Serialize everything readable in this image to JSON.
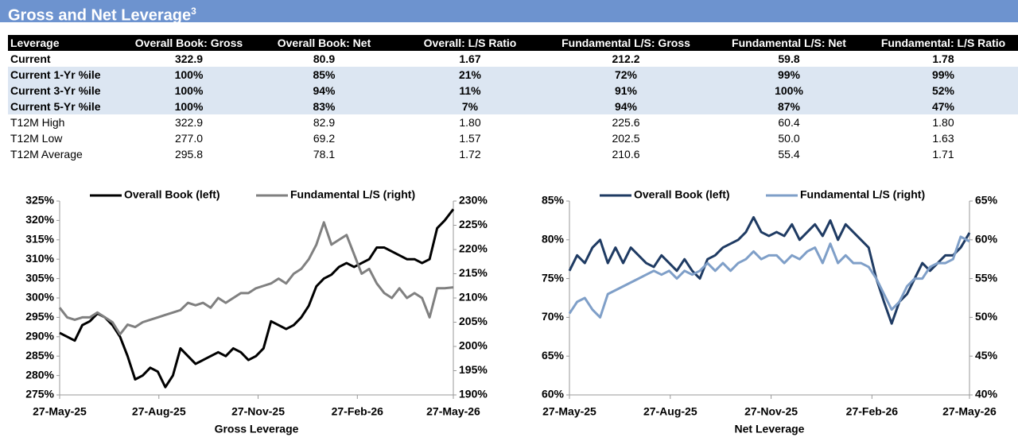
{
  "header": {
    "title": "Gross and Net Leverage",
    "superscript": "3"
  },
  "table": {
    "columns": [
      "Leverage",
      "Overall Book: Gross",
      "Overall Book: Net",
      "Overall: L/S Ratio",
      "Fundamental L/S: Gross",
      "Fundamental L/S: Net",
      "Fundamental: L/S Ratio"
    ],
    "rows": [
      [
        "Current",
        "322.9",
        "80.9",
        "1.67",
        "212.2",
        "59.8",
        "1.78"
      ],
      [
        "Current 1-Yr %ile",
        "100%",
        "85%",
        "21%",
        "72%",
        "99%",
        "99%"
      ],
      [
        "Current 3-Yr %ile",
        "100%",
        "94%",
        "11%",
        "91%",
        "100%",
        "52%"
      ],
      [
        "Current 5-Yr %ile",
        "100%",
        "83%",
        "7%",
        "94%",
        "87%",
        "47%"
      ],
      [
        "T12M High",
        "322.9",
        "82.9",
        "1.80",
        "225.6",
        "60.4",
        "1.80"
      ],
      [
        "T12M Low",
        "277.0",
        "69.2",
        "1.57",
        "202.5",
        "50.0",
        "1.63"
      ],
      [
        "T12M Average",
        "295.8",
        "78.1",
        "1.72",
        "210.6",
        "55.4",
        "1.71"
      ]
    ]
  },
  "chart_data": [
    {
      "type": "line",
      "xlabel": "Gross Leverage",
      "legend": "top",
      "x": [
        "27-May-25",
        "3-Jun-25",
        "10-Jun-25",
        "17-Jun-25",
        "24-Jun-25",
        "1-Jul-25",
        "8-Jul-25",
        "15-Jul-25",
        "22-Jul-25",
        "29-Jul-25",
        "5-Aug-25",
        "12-Aug-25",
        "19-Aug-25",
        "26-Aug-25",
        "2-Sep-25",
        "9-Sep-25",
        "16-Sep-25",
        "23-Sep-25",
        "30-Sep-25",
        "7-Oct-25",
        "14-Oct-25",
        "21-Oct-25",
        "28-Oct-25",
        "4-Nov-25",
        "11-Nov-25",
        "18-Nov-25",
        "25-Nov-25",
        "2-Dec-25",
        "9-Dec-25",
        "16-Dec-25",
        "23-Dec-25",
        "30-Dec-25",
        "6-Jan-26",
        "13-Jan-26",
        "20-Jan-26",
        "27-Jan-26",
        "3-Feb-26",
        "10-Feb-26",
        "17-Feb-26",
        "24-Feb-26",
        "3-Mar-26",
        "10-Mar-26",
        "17-Mar-26",
        "24-Mar-26",
        "31-Mar-26",
        "7-Apr-26",
        "14-Apr-26",
        "21-Apr-26",
        "28-Apr-26",
        "5-May-26",
        "12-May-26",
        "19-May-26",
        "27-May-26"
      ],
      "xlim": [
        "27-May-25",
        "27-May-26"
      ],
      "xticks": [
        "27-May-25",
        "27-Aug-25",
        "27-Nov-25",
        "27-Feb-26",
        "27-May-26"
      ],
      "ylim": [
        275,
        325
      ],
      "yticks": [
        {
          "value": 275,
          "label": "275%"
        },
        {
          "value": 280,
          "label": "280%"
        },
        {
          "value": 285,
          "label": "285%"
        },
        {
          "value": 290,
          "label": "290%"
        },
        {
          "value": 295,
          "label": "295%"
        },
        {
          "value": 300,
          "label": "300%"
        },
        {
          "value": 305,
          "label": "305%"
        },
        {
          "value": 310,
          "label": "310%"
        },
        {
          "value": 315,
          "label": "315%"
        },
        {
          "value": 320,
          "label": "320%"
        },
        {
          "value": 325,
          "label": "325%"
        }
      ],
      "y2lim": [
        190,
        230
      ],
      "y2ticks": [
        {
          "value": 190,
          "label": "190%"
        },
        {
          "value": 195,
          "label": "195%"
        },
        {
          "value": 200,
          "label": "200%"
        },
        {
          "value": 205,
          "label": "205%"
        },
        {
          "value": 210,
          "label": "210%"
        },
        {
          "value": 215,
          "label": "215%"
        },
        {
          "value": 220,
          "label": "220%"
        },
        {
          "value": 225,
          "label": "225%"
        },
        {
          "value": 230,
          "label": "230%"
        }
      ],
      "series": [
        {
          "name": "Overall Book (left)",
          "color": "#000000",
          "axis": "y",
          "values": [
            291,
            290,
            289,
            293,
            294,
            296,
            295,
            293,
            290,
            285,
            279,
            280,
            282,
            281,
            277,
            280,
            287,
            285,
            283,
            284,
            285,
            286,
            285,
            287,
            286,
            284,
            285,
            287,
            294,
            293,
            292,
            293,
            295,
            298,
            303,
            305,
            306,
            308,
            309,
            308,
            309,
            310,
            313,
            313,
            312,
            311,
            310,
            310,
            309,
            310,
            318,
            320,
            322.9
          ]
        },
        {
          "name": "Fundamental L/S (right)",
          "color": "#808080",
          "axis": "y2",
          "values": [
            208,
            206,
            205.5,
            206,
            206,
            207,
            206,
            205,
            202.5,
            204.5,
            204,
            205,
            205.5,
            206,
            206.5,
            207,
            207.5,
            209,
            208.5,
            209,
            208,
            210,
            209,
            210,
            211,
            211,
            212,
            212.5,
            213,
            214,
            213,
            215,
            216,
            218,
            221,
            225.6,
            221,
            222,
            223,
            219,
            215,
            216,
            213,
            211,
            210,
            212,
            210,
            211,
            210,
            206,
            212,
            212,
            212.2
          ]
        }
      ]
    },
    {
      "type": "line",
      "xlabel": "Net Leverage",
      "legend": "top",
      "x": [
        "27-May-25",
        "3-Jun-25",
        "10-Jun-25",
        "17-Jun-25",
        "24-Jun-25",
        "1-Jul-25",
        "8-Jul-25",
        "15-Jul-25",
        "22-Jul-25",
        "29-Jul-25",
        "5-Aug-25",
        "12-Aug-25",
        "19-Aug-25",
        "26-Aug-25",
        "2-Sep-25",
        "9-Sep-25",
        "16-Sep-25",
        "23-Sep-25",
        "30-Sep-25",
        "7-Oct-25",
        "14-Oct-25",
        "21-Oct-25",
        "28-Oct-25",
        "4-Nov-25",
        "11-Nov-25",
        "18-Nov-25",
        "25-Nov-25",
        "2-Dec-25",
        "9-Dec-25",
        "16-Dec-25",
        "23-Dec-25",
        "30-Dec-25",
        "6-Jan-26",
        "13-Jan-26",
        "20-Jan-26",
        "27-Jan-26",
        "3-Feb-26",
        "10-Feb-26",
        "17-Feb-26",
        "24-Feb-26",
        "3-Mar-26",
        "10-Mar-26",
        "17-Mar-26",
        "24-Mar-26",
        "31-Mar-26",
        "7-Apr-26",
        "14-Apr-26",
        "21-Apr-26",
        "28-Apr-26",
        "5-May-26",
        "12-May-26",
        "19-May-26",
        "27-May-26"
      ],
      "xlim": [
        "27-May-25",
        "27-May-26"
      ],
      "xticks": [
        "27-May-25",
        "27-Aug-25",
        "27-Nov-25",
        "27-Feb-26",
        "27-May-26"
      ],
      "ylim": [
        60,
        85
      ],
      "yticks": [
        {
          "value": 60,
          "label": "60%"
        },
        {
          "value": 65,
          "label": "65%"
        },
        {
          "value": 70,
          "label": "70%"
        },
        {
          "value": 75,
          "label": "75%"
        },
        {
          "value": 80,
          "label": "80%"
        },
        {
          "value": 85,
          "label": "85%"
        }
      ],
      "y2lim": [
        40,
        65
      ],
      "y2ticks": [
        {
          "value": 40,
          "label": "40%"
        },
        {
          "value": 45,
          "label": "45%"
        },
        {
          "value": 50,
          "label": "50%"
        },
        {
          "value": 55,
          "label": "55%"
        },
        {
          "value": 60,
          "label": "60%"
        },
        {
          "value": 65,
          "label": "65%"
        }
      ],
      "series": [
        {
          "name": "Overall Book (left)",
          "color": "#1f3b63",
          "axis": "y",
          "values": [
            76,
            78,
            77,
            79,
            80,
            77,
            79,
            77,
            79,
            78,
            77,
            76.5,
            78,
            77,
            76,
            77.5,
            76,
            75,
            77.5,
            78,
            79,
            79.5,
            80,
            81,
            82.9,
            81,
            80.5,
            81,
            80.5,
            82,
            80,
            81,
            82,
            80.5,
            82.5,
            80,
            82,
            81,
            80,
            79,
            75,
            72,
            69.2,
            72,
            73,
            75,
            77,
            76,
            77,
            78,
            78,
            79,
            80.9
          ]
        },
        {
          "name": "Fundamental L/S (right)",
          "color": "#7f9fc8",
          "axis": "y2",
          "values": [
            50.5,
            52,
            52.5,
            51,
            50,
            53,
            53.5,
            54,
            54.5,
            55,
            55.5,
            56,
            55.5,
            56,
            55,
            56,
            55.5,
            56,
            57,
            56,
            57,
            56,
            57,
            57.5,
            58.5,
            57.5,
            58,
            58,
            57,
            58,
            57.5,
            58.5,
            59,
            57,
            59.5,
            57,
            58,
            57,
            57,
            56.5,
            55,
            53,
            51,
            52,
            54,
            55,
            55,
            56.5,
            57,
            57,
            57.5,
            60.4,
            59.8
          ]
        }
      ]
    }
  ]
}
